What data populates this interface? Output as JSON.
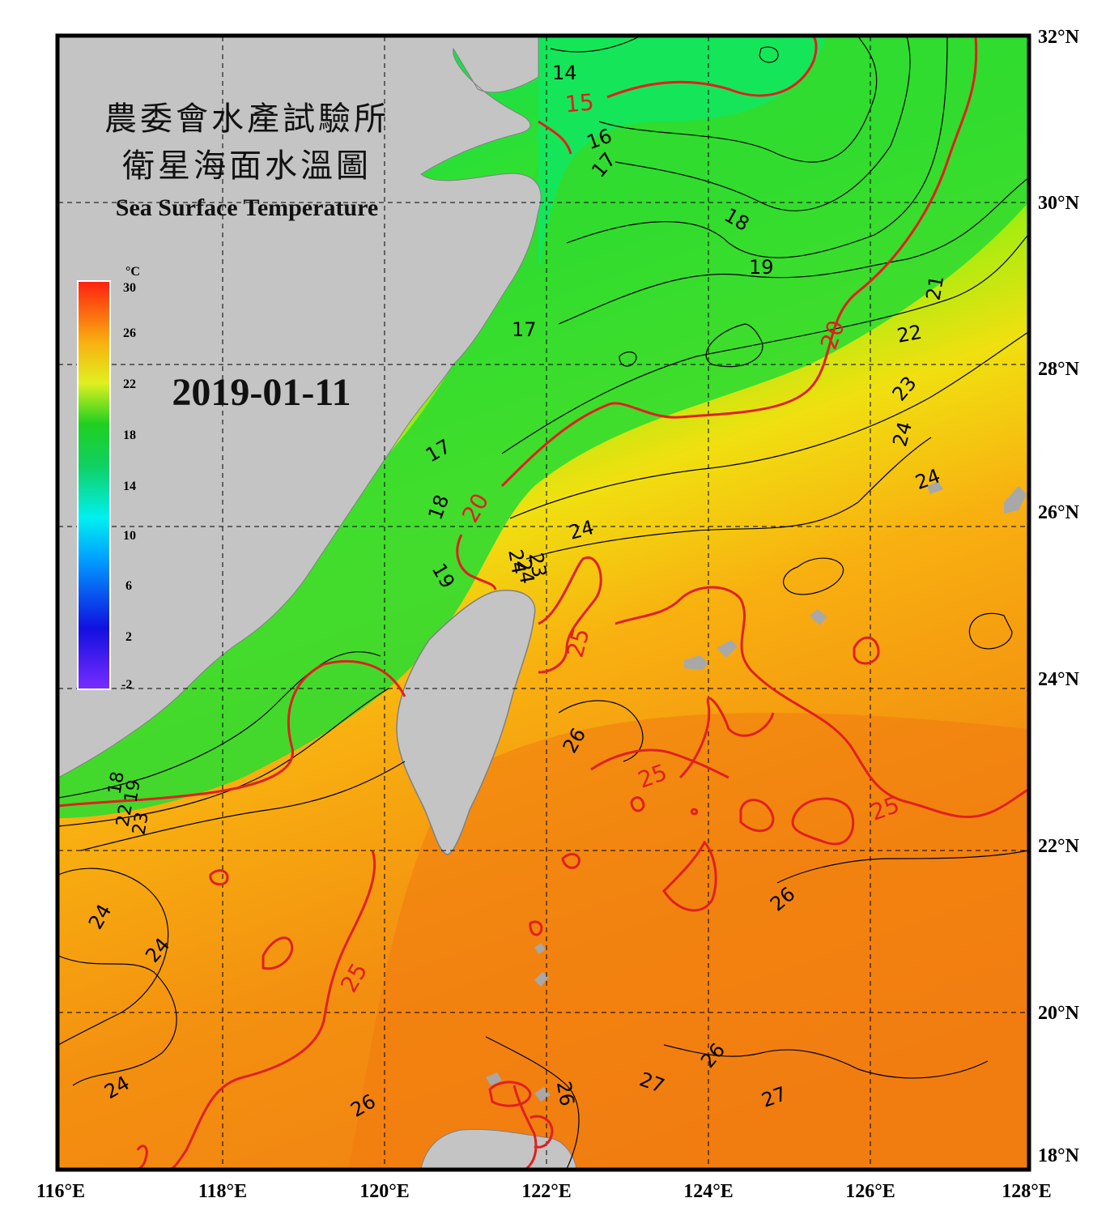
{
  "titles": {
    "agency": "農委會水產試驗所",
    "product": "衛星海面水溫圖",
    "english": "Sea Surface Temperature",
    "date": "2019-01-11"
  },
  "colorbar": {
    "unit": "°C",
    "ticks": [
      "30",
      "26",
      "22",
      "18",
      "14",
      "10",
      "6",
      "2",
      "-2"
    ]
  },
  "axes": {
    "lon_labels": [
      "116°E",
      "118°E",
      "120°E",
      "122°E",
      "124°E",
      "126°E",
      "128°E"
    ],
    "lat_labels": [
      "32°N",
      "30°N",
      "28°N",
      "26°N",
      "24°N",
      "22°N",
      "20°N",
      "18°N"
    ]
  },
  "isotherm_labels": {
    "black": [
      "14",
      "16",
      "17",
      "18",
      "19",
      "21",
      "22",
      "23",
      "24",
      "24",
      "24",
      "17",
      "17",
      "18",
      "19",
      "24",
      "23",
      "24",
      "26",
      "26",
      "24",
      "24",
      "24",
      "26",
      "26",
      "27",
      "27",
      "26"
    ],
    "red": [
      "15",
      "20",
      "20",
      "25",
      "25",
      "25",
      "25"
    ]
  },
  "colors": {
    "land": "#c4c4c4",
    "isotherm_major": "#e02020",
    "isotherm_minor": "#000000",
    "frame": "#000000"
  }
}
